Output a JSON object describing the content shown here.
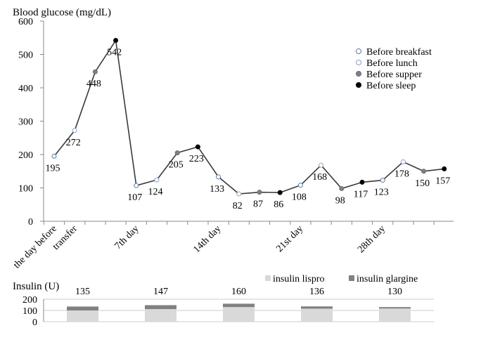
{
  "chart_data": [
    {
      "type": "line",
      "ylabel": "Blood glucose (mg/dL)",
      "ylim": [
        0,
        600
      ],
      "yticks": [
        0,
        100,
        200,
        300,
        400,
        500,
        600
      ],
      "xtick_labels": [
        {
          "label": "the day before",
          "index": 0
        },
        {
          "label": "transfer",
          "index": 1
        },
        {
          "label": "7th day",
          "index": 4
        },
        {
          "label": "14th day",
          "index": 8
        },
        {
          "label": "21st day",
          "index": 12
        },
        {
          "label": "28th day",
          "index": 16
        }
      ],
      "grid": false,
      "legend_position": "top-right",
      "line_color": "#3a3a3a",
      "series": [
        {
          "name": "Before breakfast",
          "color": "#ffffff",
          "stroke": "#5a7aa0"
        },
        {
          "name": "Before lunch",
          "color": "#ffffff",
          "stroke": "#8aa2c0"
        },
        {
          "name": "Before supper",
          "color": "#7f8088",
          "stroke": "#6a6c74"
        },
        {
          "name": "Before sleep",
          "color": "#000000",
          "stroke": "#000000"
        }
      ],
      "points": [
        {
          "y": 195,
          "s": 0,
          "label": "195"
        },
        {
          "y": 272,
          "s": 1,
          "label": "272"
        },
        {
          "y": 448,
          "s": 2,
          "label": "448"
        },
        {
          "y": 542,
          "s": 3,
          "label": "542"
        },
        {
          "y": 107,
          "s": 0,
          "label": "107"
        },
        {
          "y": 124,
          "s": 1,
          "label": "124"
        },
        {
          "y": 205,
          "s": 2,
          "label": "205"
        },
        {
          "y": 223,
          "s": 3,
          "label": "223"
        },
        {
          "y": 133,
          "s": 0,
          "label": "133"
        },
        {
          "y": 82,
          "s": 1,
          "label": "82"
        },
        {
          "y": 87,
          "s": 2,
          "label": "87"
        },
        {
          "y": 86,
          "s": 3,
          "label": "86"
        },
        {
          "y": 108,
          "s": 0,
          "label": "108"
        },
        {
          "y": 168,
          "s": 1,
          "label": "168"
        },
        {
          "y": 98,
          "s": 2,
          "label": "98"
        },
        {
          "y": 117,
          "s": 3,
          "label": "117"
        },
        {
          "y": 123,
          "s": 0,
          "label": "123"
        },
        {
          "y": 178,
          "s": 1,
          "label": "178"
        },
        {
          "y": 150,
          "s": 2,
          "label": "150"
        },
        {
          "y": 157,
          "s": 3,
          "label": "157"
        }
      ]
    },
    {
      "type": "bar",
      "stacked": true,
      "ylabel": "Insulin (U)",
      "ylim": [
        0,
        200
      ],
      "yticks": [
        0,
        100,
        200
      ],
      "grid": true,
      "legend_position": "top-right",
      "categories": [
        "",
        "",
        "",
        "",
        ""
      ],
      "series": [
        {
          "name": "insulin lispro",
          "color": "#d9d9d9",
          "values": [
            100,
            112,
            130,
            116,
            117
          ]
        },
        {
          "name": "insulin glargine",
          "color": "#808080",
          "values": [
            35,
            35,
            30,
            20,
            13
          ]
        }
      ],
      "totals": [
        "135",
        "147",
        "160",
        "136",
        "130"
      ]
    }
  ]
}
